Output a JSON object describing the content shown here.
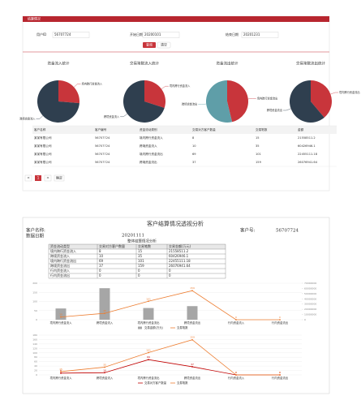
{
  "ui": {
    "header": "结算情况",
    "form": {
      "user_id_label": "用户ID",
      "user_id": "56707724",
      "start_label": "开始日期",
      "start": "20200101",
      "end_label": "结束日期",
      "end": "20201231",
      "query": "查询",
      "reset": "清空"
    },
    "pies": [
      {
        "title": "资金流入统计",
        "labels": [
          "境内跨行资金流入",
          "跨境资金流入"
        ],
        "values": [
          21558511.2,
          60426946.1
        ],
        "colors": [
          "#c8353b",
          "#2f3f4f"
        ]
      },
      {
        "title": "交易笔数流入统计",
        "labels": [
          "境内跨行资金流入",
          "跨境资金流入"
        ],
        "values": [
          15,
          35
        ],
        "colors": [
          "#c8353b",
          "#2f3f4f"
        ]
      },
      {
        "title": "资金流出统计",
        "labels": [
          "境内跨行资金流出",
          "跨境资金流出"
        ],
        "values": [
          22455111.18,
          26076941.64
        ],
        "colors": [
          "#c8353b",
          "#5f9ea8"
        ]
      },
      {
        "title": "交易笔数流出统计",
        "labels": [
          "境内跨行资金流出",
          "跨境资金流出"
        ],
        "values": [
          101,
          159
        ],
        "colors": [
          "#c8353b",
          "#2f3f4f"
        ]
      }
    ],
    "table": {
      "columns": [
        "客户名称",
        "客户编号",
        "资金流动类别",
        "交易对方客户数量",
        "交易笔数",
        "金额"
      ],
      "rows": [
        [
          "某某有限公司",
          "56707724",
          "境内跨行资金流入",
          8,
          15,
          21558511.2
        ],
        [
          "某某有限公司",
          "56707724",
          "跨境资金流入",
          10,
          35,
          60426946.1
        ],
        [
          "某某有限公司",
          "56707724",
          "境内跨行资金流出",
          69,
          101,
          22455111.18
        ],
        [
          "某某有限公司",
          "56707724",
          "跨境资金流出",
          37,
          159,
          26076941.64
        ]
      ]
    },
    "pagination": {
      "prev": "<",
      "page": "1",
      "next": ">",
      "go": "确定"
    }
  },
  "report": {
    "title": "客户结算情况透视分析",
    "customer_label": "客户名称:",
    "customer_no_label": "客户号:",
    "customer_no": "56707724",
    "date_label": "数据日期",
    "date": "20201111",
    "section": "整体结算情况分析",
    "table": {
      "columns": [
        "资金流动类型",
        "交易对方客户数量",
        "交易笔数",
        "交易金额(万元)"
      ],
      "rows": [
        [
          "境内跨行资金流入",
          8,
          15,
          21558511.2
        ],
        [
          "跨境资金流入",
          10,
          35,
          60426946.1
        ],
        [
          "境内跨行资金流出",
          69,
          101,
          22455111.18
        ],
        [
          "跨境资金流出",
          37,
          159,
          26076941.64
        ],
        [
          "行内资金流入",
          0,
          0,
          0
        ],
        [
          "行内资金流出",
          0,
          0,
          0
        ]
      ]
    },
    "charts": [
      {
        "type": "bar-line",
        "categories": [
          "境内跨行资金流入",
          "跨境资金流入",
          "境内跨行资金流出",
          "跨境资金流出",
          "行内资金流入",
          "行内资金流出"
        ],
        "series": [
          {
            "name": "交易金额(万元)",
            "type": "bar",
            "axis": "y2",
            "color": "#a6a6a6",
            "values": [
              21558511.2,
              60426946.1,
              22455111.18,
              26076941.64,
              0,
              0
            ]
          },
          {
            "name": "交易笔数",
            "type": "line",
            "color": "#ed7d31",
            "values": [
              15,
              35,
              101,
              159,
              0,
              0
            ]
          }
        ],
        "ylim": [
          0,
          200
        ],
        "yticks": [
          0,
          50,
          100,
          150,
          200
        ],
        "y2lim": [
          0,
          70000000
        ],
        "y2ticks": [
          0,
          10000000,
          20000000,
          30000000,
          40000000,
          50000000,
          60000000,
          70000000
        ]
      },
      {
        "type": "line",
        "categories": [
          "境内跨行资金流入",
          "跨境资金流入",
          "境内跨行资金流出",
          "跨境资金流出",
          "行内资金流入",
          "行内资金流出"
        ],
        "series": [
          {
            "name": "交易对方客户数量",
            "type": "line",
            "color": "#c00000",
            "values": [
              8,
              10,
              69,
              37,
              0,
              0
            ]
          },
          {
            "name": "交易笔数",
            "type": "line",
            "color": "#ed7d31",
            "values": [
              15,
              35,
              101,
              159,
              0,
              0
            ]
          }
        ],
        "ylim": [
          0,
          180
        ],
        "yticks": [
          0,
          20,
          40,
          60,
          80,
          100,
          120,
          140,
          160,
          180
        ]
      }
    ]
  }
}
